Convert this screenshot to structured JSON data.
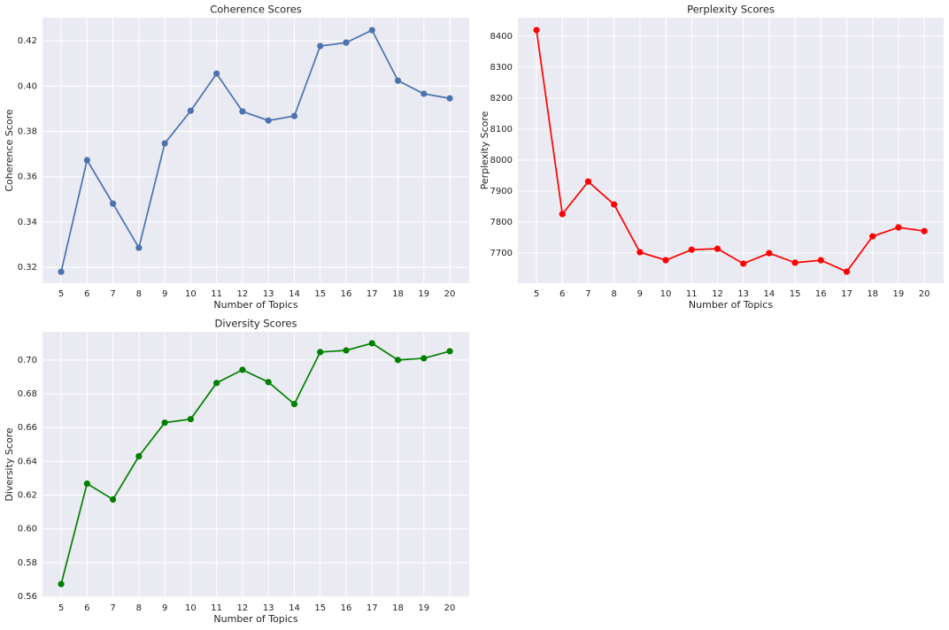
{
  "chart_data": [
    {
      "type": "line",
      "title": "Coherence Scores",
      "xlabel": "Number of Topics",
      "ylabel": "Coherence Score",
      "x": [
        5,
        6,
        7,
        8,
        9,
        10,
        11,
        12,
        13,
        14,
        15,
        16,
        17,
        18,
        19,
        20
      ],
      "series": [
        {
          "name": "Coherence",
          "color": "#4c72b0",
          "values": [
            0.318,
            0.3673,
            0.3481,
            0.3286,
            0.3747,
            0.3891,
            0.4055,
            0.3888,
            0.3848,
            0.3868,
            0.4177,
            0.4192,
            0.4247,
            0.4024,
            0.3966,
            0.3946
          ]
        }
      ],
      "xlim": [
        4.28,
        20.75
      ],
      "xticks": [
        5,
        6,
        7,
        8,
        9,
        10,
        11,
        12,
        13,
        14,
        15,
        16,
        17,
        18,
        19,
        20
      ],
      "ylim": [
        0.313,
        0.4302
      ],
      "yticks": [
        0.32,
        0.34,
        0.36,
        0.38,
        {
          "value": 0.4,
          "label": "0.40"
        },
        0.42
      ],
      "grid": true
    },
    {
      "type": "line",
      "title": "Perplexity Scores",
      "xlabel": "Number of Topics",
      "ylabel": "Perplexity Score",
      "x": [
        5,
        6,
        7,
        8,
        9,
        10,
        11,
        12,
        13,
        14,
        15,
        16,
        17,
        18,
        19,
        20
      ],
      "series": [
        {
          "name": "Perplexity",
          "color": "#ff0000",
          "values": [
            8420,
            7826,
            7931,
            7857,
            7703,
            7677,
            7711,
            7714,
            7666,
            7700,
            7669,
            7677,
            7640,
            7754,
            7783,
            7771
          ]
        }
      ],
      "xlim": [
        4.28,
        20.75
      ],
      "xticks": [
        5,
        6,
        7,
        8,
        9,
        10,
        11,
        12,
        13,
        14,
        15,
        16,
        17,
        18,
        19,
        20
      ],
      "ylim": [
        7603,
        8460
      ],
      "yticks": [
        7700,
        7800,
        7900,
        8000,
        8100,
        8200,
        8300,
        8400
      ],
      "grid": true
    },
    {
      "type": "line",
      "title": "Diversity Scores",
      "xlabel": "Number of Topics",
      "ylabel": "Diversity Score",
      "x": [
        5,
        6,
        7,
        8,
        9,
        10,
        11,
        12,
        13,
        14,
        15,
        16,
        17,
        18,
        19,
        20
      ],
      "series": [
        {
          "name": "Diversity",
          "color": "#008000",
          "values": [
            0.5673,
            0.6268,
            0.6174,
            0.643,
            0.6629,
            0.665,
            0.6864,
            0.6942,
            0.6869,
            0.6739,
            0.7047,
            0.7057,
            0.7099,
            0.7,
            0.701,
            0.7052
          ]
        }
      ],
      "xlim": [
        4.28,
        20.75
      ],
      "xticks": [
        5,
        6,
        7,
        8,
        9,
        10,
        11,
        12,
        13,
        14,
        15,
        16,
        17,
        18,
        19,
        20
      ],
      "ylim": [
        0.5595,
        0.7167
      ],
      "yticks": [
        0.56,
        0.58,
        {
          "value": 0.6,
          "label": "0.60"
        },
        0.62,
        0.64,
        0.66,
        0.68,
        {
          "value": 0.7,
          "label": "0.70"
        }
      ],
      "grid": true
    }
  ]
}
